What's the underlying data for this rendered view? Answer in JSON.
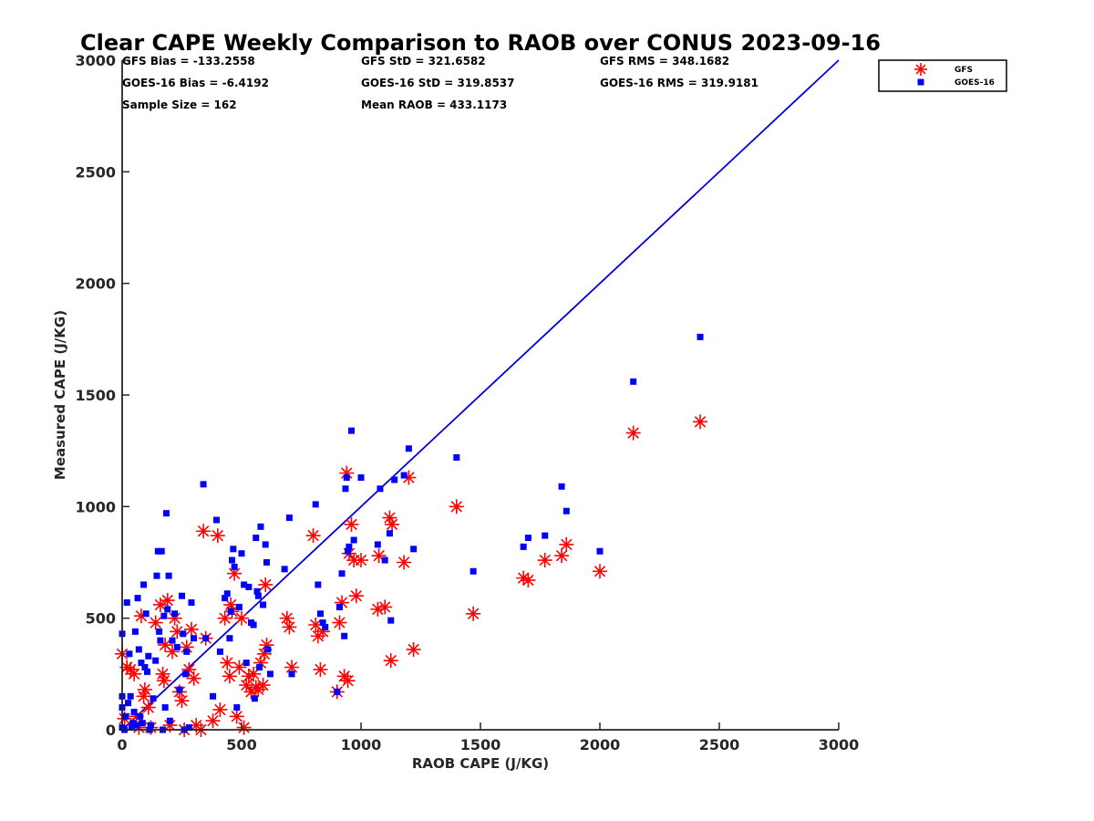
{
  "colors": {
    "gfs": "#ff0000",
    "goes": "#0000ff",
    "line": "#0000dd",
    "axis": "#262626"
  },
  "chart_data": {
    "type": "scatter",
    "title": "Clear CAPE Weekly Comparison to RAOB over CONUS 2023-09-16",
    "xlabel": "RAOB CAPE (J/KG)",
    "ylabel": "Measured CAPE (J/KG)",
    "xlim": [
      0,
      3000
    ],
    "ylim": [
      0,
      3000
    ],
    "xticks": [
      0,
      500,
      1000,
      1500,
      2000,
      2500,
      3000
    ],
    "yticks": [
      0,
      500,
      1000,
      1500,
      2000,
      2500,
      3000
    ],
    "xtick_labels": [
      "0",
      "500",
      "1000",
      "1500",
      "2000",
      "2500",
      "3000"
    ],
    "ytick_labels": [
      "0",
      "500",
      "1000",
      "1500",
      "2000",
      "2500",
      "3000"
    ],
    "grid": false,
    "legend_position": "top-right",
    "stats": [
      [
        "GFS Bias = -133.2558",
        "GFS StD = 321.6582",
        "GFS RMS = 348.1682"
      ],
      [
        "GOES-16 Bias = -6.4192",
        "GOES-16 StD = 319.8537",
        "GOES-16 RMS = 319.9181"
      ],
      [
        "Sample Size = 162",
        "Mean RAOB = 433.1173",
        ""
      ]
    ],
    "fit_line": {
      "x": [
        0,
        3000
      ],
      "y": [
        0,
        3000
      ]
    },
    "series": [
      {
        "name": "GFS",
        "marker": "asterisk",
        "color": "#ff0000",
        "points": [
          [
            0,
            340
          ],
          [
            10,
            50
          ],
          [
            20,
            280
          ],
          [
            35,
            270
          ],
          [
            50,
            250
          ],
          [
            60,
            60
          ],
          [
            70,
            10
          ],
          [
            80,
            510
          ],
          [
            90,
            150
          ],
          [
            95,
            180
          ],
          [
            110,
            100
          ],
          [
            120,
            10
          ],
          [
            140,
            480
          ],
          [
            160,
            560
          ],
          [
            170,
            250
          ],
          [
            175,
            220
          ],
          [
            180,
            380
          ],
          [
            190,
            580
          ],
          [
            200,
            20
          ],
          [
            210,
            350
          ],
          [
            220,
            500
          ],
          [
            230,
            440
          ],
          [
            240,
            170
          ],
          [
            250,
            130
          ],
          [
            260,
            0
          ],
          [
            270,
            370
          ],
          [
            280,
            270
          ],
          [
            290,
            450
          ],
          [
            300,
            230
          ],
          [
            310,
            20
          ],
          [
            330,
            0
          ],
          [
            340,
            890
          ],
          [
            350,
            410
          ],
          [
            380,
            40
          ],
          [
            400,
            870
          ],
          [
            410,
            90
          ],
          [
            430,
            500
          ],
          [
            440,
            300
          ],
          [
            450,
            240
          ],
          [
            455,
            560
          ],
          [
            460,
            530
          ],
          [
            470,
            700
          ],
          [
            480,
            60
          ],
          [
            490,
            280
          ],
          [
            500,
            500
          ],
          [
            510,
            10
          ],
          [
            520,
            200
          ],
          [
            530,
            240
          ],
          [
            540,
            170
          ],
          [
            550,
            250
          ],
          [
            560,
            190
          ],
          [
            570,
            180
          ],
          [
            580,
            300
          ],
          [
            590,
            200
          ],
          [
            595,
            340
          ],
          [
            600,
            650
          ],
          [
            605,
            380
          ],
          [
            690,
            500
          ],
          [
            700,
            460
          ],
          [
            710,
            280
          ],
          [
            800,
            870
          ],
          [
            810,
            470
          ],
          [
            820,
            420
          ],
          [
            830,
            270
          ],
          [
            840,
            440
          ],
          [
            900,
            170
          ],
          [
            910,
            480
          ],
          [
            920,
            570
          ],
          [
            930,
            240
          ],
          [
            940,
            1150
          ],
          [
            945,
            220
          ],
          [
            950,
            790
          ],
          [
            960,
            920
          ],
          [
            970,
            760
          ],
          [
            980,
            600
          ],
          [
            1000,
            760
          ],
          [
            1070,
            540
          ],
          [
            1075,
            780
          ],
          [
            1100,
            550
          ],
          [
            1120,
            950
          ],
          [
            1125,
            310
          ],
          [
            1130,
            920
          ],
          [
            1180,
            750
          ],
          [
            1200,
            1130
          ],
          [
            1220,
            360
          ],
          [
            1400,
            1000
          ],
          [
            1470,
            520
          ],
          [
            1680,
            680
          ],
          [
            1700,
            670
          ],
          [
            1770,
            760
          ],
          [
            1840,
            780
          ],
          [
            1860,
            830
          ],
          [
            2000,
            710
          ],
          [
            2140,
            1330
          ],
          [
            2420,
            1380
          ]
        ]
      },
      {
        "name": "GOES-16",
        "marker": "square",
        "color": "#0000ff",
        "points": [
          [
            0,
            430
          ],
          [
            0,
            100
          ],
          [
            0,
            150
          ],
          [
            0,
            10
          ],
          [
            10,
            0
          ],
          [
            15,
            60
          ],
          [
            20,
            570
          ],
          [
            25,
            120
          ],
          [
            30,
            340
          ],
          [
            35,
            150
          ],
          [
            40,
            10
          ],
          [
            45,
            30
          ],
          [
            50,
            80
          ],
          [
            55,
            440
          ],
          [
            60,
            20
          ],
          [
            65,
            590
          ],
          [
            70,
            360
          ],
          [
            75,
            60
          ],
          [
            80,
            300
          ],
          [
            85,
            30
          ],
          [
            90,
            650
          ],
          [
            95,
            280
          ],
          [
            100,
            520
          ],
          [
            105,
            260
          ],
          [
            110,
            330
          ],
          [
            115,
            0
          ],
          [
            120,
            20
          ],
          [
            130,
            140
          ],
          [
            140,
            310
          ],
          [
            145,
            690
          ],
          [
            150,
            800
          ],
          [
            155,
            440
          ],
          [
            160,
            400
          ],
          [
            165,
            800
          ],
          [
            170,
            0
          ],
          [
            175,
            510
          ],
          [
            180,
            100
          ],
          [
            185,
            970
          ],
          [
            190,
            540
          ],
          [
            195,
            690
          ],
          [
            200,
            40
          ],
          [
            210,
            400
          ],
          [
            220,
            520
          ],
          [
            230,
            370
          ],
          [
            240,
            180
          ],
          [
            250,
            600
          ],
          [
            255,
            430
          ],
          [
            260,
            0
          ],
          [
            265,
            250
          ],
          [
            270,
            350
          ],
          [
            280,
            10
          ],
          [
            290,
            570
          ],
          [
            300,
            410
          ],
          [
            340,
            1100
          ],
          [
            350,
            410
          ],
          [
            380,
            150
          ],
          [
            395,
            940
          ],
          [
            410,
            350
          ],
          [
            430,
            590
          ],
          [
            440,
            610
          ],
          [
            450,
            410
          ],
          [
            455,
            530
          ],
          [
            460,
            760
          ],
          [
            465,
            810
          ],
          [
            470,
            730
          ],
          [
            480,
            100
          ],
          [
            490,
            550
          ],
          [
            500,
            790
          ],
          [
            510,
            650
          ],
          [
            520,
            300
          ],
          [
            530,
            640
          ],
          [
            540,
            480
          ],
          [
            550,
            470
          ],
          [
            555,
            140
          ],
          [
            560,
            860
          ],
          [
            565,
            620
          ],
          [
            570,
            600
          ],
          [
            575,
            280
          ],
          [
            580,
            910
          ],
          [
            590,
            560
          ],
          [
            600,
            830
          ],
          [
            605,
            750
          ],
          [
            610,
            360
          ],
          [
            620,
            250
          ],
          [
            680,
            720
          ],
          [
            700,
            950
          ],
          [
            710,
            250
          ],
          [
            810,
            1010
          ],
          [
            820,
            650
          ],
          [
            830,
            520
          ],
          [
            840,
            480
          ],
          [
            850,
            460
          ],
          [
            900,
            170
          ],
          [
            910,
            550
          ],
          [
            920,
            700
          ],
          [
            930,
            420
          ],
          [
            935,
            1080
          ],
          [
            940,
            1130
          ],
          [
            945,
            800
          ],
          [
            950,
            820
          ],
          [
            960,
            1340
          ],
          [
            970,
            850
          ],
          [
            1000,
            1130
          ],
          [
            1070,
            830
          ],
          [
            1080,
            1080
          ],
          [
            1100,
            760
          ],
          [
            1120,
            880
          ],
          [
            1125,
            490
          ],
          [
            1140,
            1120
          ],
          [
            1180,
            1140
          ],
          [
            1200,
            1260
          ],
          [
            1220,
            810
          ],
          [
            1400,
            1220
          ],
          [
            1470,
            710
          ],
          [
            1680,
            820
          ],
          [
            1700,
            860
          ],
          [
            1770,
            870
          ],
          [
            1840,
            1090
          ],
          [
            1860,
            980
          ],
          [
            2000,
            800
          ],
          [
            2140,
            1560
          ],
          [
            2420,
            1760
          ]
        ]
      }
    ]
  }
}
